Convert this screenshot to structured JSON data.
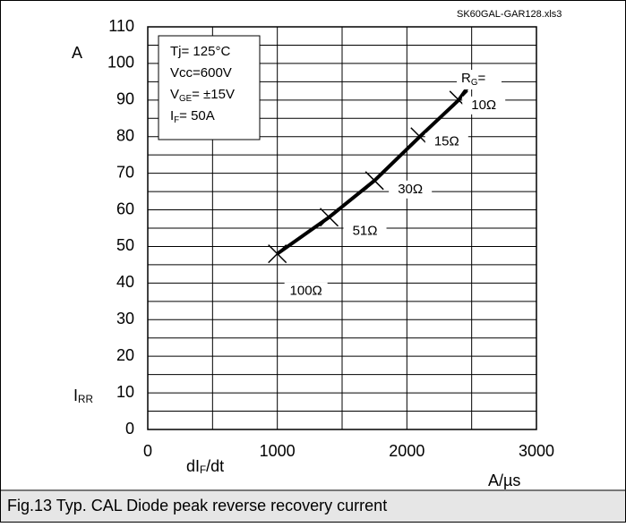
{
  "chart_data": {
    "type": "line",
    "file_label": "SK60GAL-GAR128.xls3",
    "caption": "Fig.13 Typ. CAL Diode peak reverse recovery current",
    "y_unit": "A",
    "y_label": {
      "main": "I",
      "sub": "RR"
    },
    "x_label": {
      "main": "dI",
      "sub": "F",
      "rest": "/dt"
    },
    "x_unit": "A/µs",
    "conditions": [
      {
        "main": "Tj= 125°C"
      },
      {
        "main": "Vcc=600V"
      },
      {
        "main": "V",
        "sub": "GE",
        "rest": "= ±15V"
      },
      {
        "main": "I",
        "sub": "F",
        "rest": "= 50A"
      }
    ],
    "series_title": {
      "main": "R",
      "sub": "G",
      "rest": "="
    },
    "x": [
      1000,
      1400,
      1750,
      2100,
      2400,
      2500
    ],
    "series": [
      {
        "color": "#000000",
        "values": [
          48,
          58,
          68,
          80,
          90,
          95
        ]
      }
    ],
    "point_labels": [
      "100Ω",
      "51Ω",
      "30Ω",
      "15Ω",
      "10Ω",
      null
    ],
    "xlim": [
      0,
      3000
    ],
    "ylim": [
      0,
      110
    ],
    "xticks": [
      0,
      1000,
      2000,
      3000
    ],
    "yticks": [
      0,
      10,
      20,
      30,
      40,
      50,
      60,
      70,
      80,
      90,
      100,
      110
    ],
    "xminor": [
      500,
      1500,
      2500
    ],
    "yminor": [
      5,
      15,
      25,
      35,
      45,
      55,
      65,
      75,
      85,
      95,
      105
    ],
    "grid": true
  }
}
